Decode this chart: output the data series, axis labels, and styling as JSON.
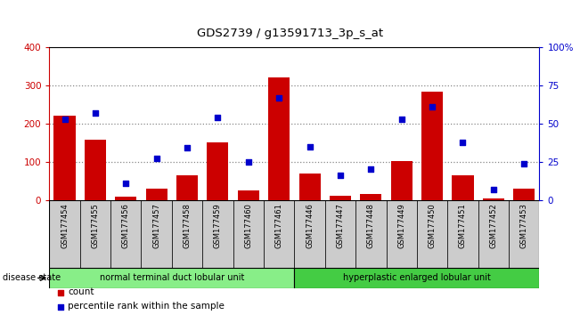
{
  "title": "GDS2739 / g13591713_3p_s_at",
  "samples": [
    "GSM177454",
    "GSM177455",
    "GSM177456",
    "GSM177457",
    "GSM177458",
    "GSM177459",
    "GSM177460",
    "GSM177461",
    "GSM177446",
    "GSM177447",
    "GSM177448",
    "GSM177449",
    "GSM177450",
    "GSM177451",
    "GSM177452",
    "GSM177453"
  ],
  "counts": [
    220,
    157,
    8,
    30,
    65,
    150,
    25,
    320,
    70,
    10,
    15,
    102,
    283,
    65,
    5,
    30
  ],
  "percentiles": [
    53,
    57,
    11,
    27,
    34,
    54,
    25,
    67,
    35,
    16,
    20,
    53,
    61,
    38,
    7,
    24
  ],
  "group1_label": "normal terminal duct lobular unit",
  "group2_label": "hyperplastic enlarged lobular unit",
  "group1_count": 8,
  "group2_count": 8,
  "bar_color": "#cc0000",
  "dot_color": "#0000cc",
  "ylim_left": [
    0,
    400
  ],
  "ylim_right": [
    0,
    100
  ],
  "yticks_left": [
    0,
    100,
    200,
    300,
    400
  ],
  "yticks_right": [
    0,
    25,
    50,
    75,
    100
  ],
  "ytick_labels_right": [
    "0",
    "25",
    "50",
    "75",
    "100%"
  ],
  "ytick_labels_left": [
    "0",
    "100",
    "200",
    "300",
    "400"
  ],
  "grid_color": "#888888",
  "bg_color": "#cccccc",
  "group1_color": "#88ee88",
  "group2_color": "#44cc44",
  "legend_count_label": "count",
  "legend_pct_label": "percentile rank within the sample",
  "disease_state_label": "disease state"
}
